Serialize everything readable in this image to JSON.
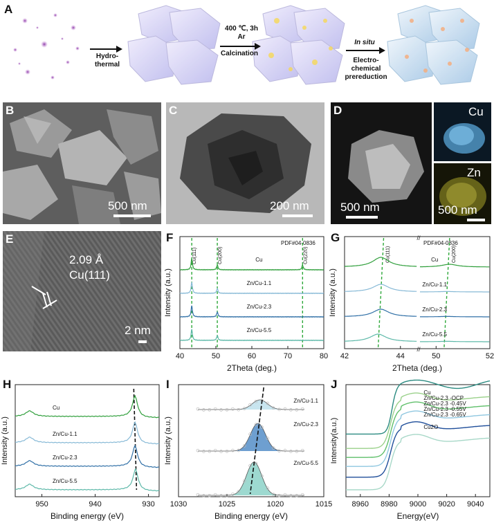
{
  "panel_labels": {
    "A": "A",
    "B": "B",
    "C": "C",
    "D": "D",
    "E": "E",
    "F": "F",
    "G": "G",
    "H": "H",
    "I": "I",
    "J": "J"
  },
  "schematic": {
    "step1": "Hydro-\nthermal",
    "step2_top": "400 ℃, 3h\nAr",
    "step2_bottom": "Calcination",
    "step3_top": "In situ",
    "step3_bottom": "Electro-\nchemical\nprereduction"
  },
  "micrographs": {
    "B_scale": "500 nm",
    "C_scale": "200 nm",
    "D_scale": "500 nm",
    "D_cu_label": "Cu",
    "D_zn_label": "Zn",
    "D_zn_scale": "500 nm",
    "E_spacing": "2.09 Å",
    "E_plane": "Cu(111)",
    "E_scale": "2 nm"
  },
  "colors": {
    "Cu": "#2e9e3a",
    "Zn/Cu-1.1": "#86b9d6",
    "Zn/Cu-2.3": "#2f6fa6",
    "Zn/Cu-5.5": "#5cb8a8",
    "dash_green": "#2ea83a"
  },
  "chart_data": [
    {
      "panel": "F",
      "type": "line",
      "xlabel": "2Theta (deg.)",
      "ylabel": "Intensity (a.u.)",
      "xlim": [
        40,
        80
      ],
      "xticks": [
        40,
        50,
        60,
        70,
        80
      ],
      "reference": "PDF#04-0836",
      "reflections": [
        {
          "label": "Cu(111)",
          "x": 43.3
        },
        {
          "label": "Cu(200)",
          "x": 50.4
        },
        {
          "label": "Cu(220)",
          "x": 74.1
        }
      ],
      "series": [
        {
          "name": "Cu",
          "peaks": [
            43.3,
            50.4,
            74.1
          ]
        },
        {
          "name": "Zn/Cu-1.1",
          "peaks": [
            43.3,
            50.4
          ]
        },
        {
          "name": "Zn/Cu-2.3",
          "peaks": [
            43.3,
            50.4
          ]
        },
        {
          "name": "Zn/Cu-5.5",
          "peaks": [
            43.3,
            50.4
          ]
        }
      ]
    },
    {
      "panel": "G",
      "type": "line",
      "xlabel": "2Theta (deg.)",
      "ylabel": "Intensity (a.u.)",
      "xlim": [
        42,
        52
      ],
      "xticks": [
        42,
        44,
        50,
        52
      ],
      "axis_break": [
        44.6,
        49.4
      ],
      "reference": "PDF#04-0836",
      "reflections": [
        {
          "label": "Cu(111)",
          "x": 43.3
        },
        {
          "label": "Cu(200)",
          "x": 50.4
        }
      ],
      "series": [
        {
          "name": "Cu",
          "peaks": [
            43.3,
            50.5
          ]
        },
        {
          "name": "Zn/Cu-1.1",
          "peaks": [
            43.3
          ]
        },
        {
          "name": "Zn/Cu-2.3",
          "peaks": [
            43.3
          ]
        },
        {
          "name": "Zn/Cu-5.5",
          "peaks": [
            43.2
          ]
        }
      ]
    },
    {
      "panel": "H",
      "type": "line",
      "xlabel": "Binding energy (eV)",
      "ylabel": "Intensity (a.u.)",
      "xlim": [
        955,
        928
      ],
      "xticks": [
        950,
        940,
        930
      ],
      "series": [
        {
          "name": "Cu",
          "peaks": [
            952.3,
            932.5
          ]
        },
        {
          "name": "Zn/Cu-1.1",
          "peaks": [
            952.3,
            932.5
          ]
        },
        {
          "name": "Zn/Cu-2.3",
          "peaks": [
            952.3,
            932.5
          ]
        },
        {
          "name": "Zn/Cu-5.5",
          "peaks": [
            952.3,
            932.4
          ]
        }
      ]
    },
    {
      "panel": "I",
      "type": "area",
      "xlabel": "Binding energy (eV)",
      "ylabel": "Intensity (a.u.)",
      "xlim": [
        1030,
        1015
      ],
      "xticks": [
        1030,
        1025,
        1020,
        1015
      ],
      "series": [
        {
          "name": "Zn/Cu-1.1",
          "peak": 1021.6
        },
        {
          "name": "Zn/Cu-2.3",
          "peak": 1021.8
        },
        {
          "name": "Zn/Cu-5.5",
          "peak": 1022.2
        }
      ]
    },
    {
      "panel": "J",
      "type": "line",
      "xlabel": "Energy(eV)",
      "ylabel": "Intensity(a.u.)",
      "xlim": [
        8950,
        9050
      ],
      "xticks": [
        8960,
        8980,
        9000,
        9020,
        9040
      ],
      "series": [
        {
          "name": "Cu",
          "color": "#a8d8c8"
        },
        {
          "name": "Zn/Cu-2.3 -OCP",
          "color": "#1f4e9a"
        },
        {
          "name": "Zn/Cu-2.3 -0.45V",
          "color": "#8fc7e0"
        },
        {
          "name": "Zn/Cu-2.3 -0.55V",
          "color": "#5fbf6a"
        },
        {
          "name": "Zn/Cu-2.3 -0.65V",
          "color": "#9ad18a"
        },
        {
          "name": "Cu2O",
          "color": "#2a8a80"
        }
      ]
    }
  ]
}
